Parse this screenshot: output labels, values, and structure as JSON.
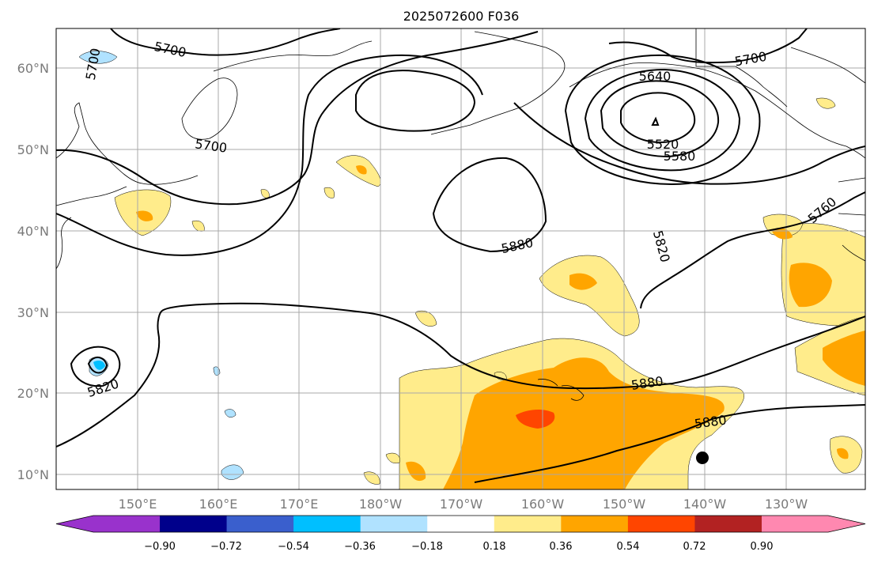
{
  "title": "2025072600 F036",
  "lat_labels": [
    "60°N",
    "50°N",
    "40°N",
    "30°N",
    "20°N",
    "10°N"
  ],
  "lon_labels": [
    "150°E",
    "160°E",
    "170°E",
    "180°W",
    "170°W",
    "160°W",
    "150°W",
    "140°W",
    "130°W"
  ],
  "contour_labels": [
    "5700",
    "5700",
    "5700",
    "5700",
    "5640",
    "5520",
    "5580",
    "5760",
    "5880",
    "5820",
    "5820",
    "5880",
    "5880"
  ],
  "colorbar": {
    "ticks": [
      "−0.90",
      "−0.72",
      "−0.54",
      "−0.36",
      "−0.18",
      "0.18",
      "0.36",
      "0.54",
      "0.72",
      "0.90"
    ],
    "colors": [
      "#9932cc",
      "#00008b",
      "#3a5fcd",
      "#00bfff",
      "#b0e2ff",
      "#ffffff",
      "#ffec8b",
      "#ffa500",
      "#ff4500",
      "#b22222",
      "#ff88b0"
    ]
  },
  "marker": "storm-center-dot",
  "colors": {
    "light_yellow": "#ffec8b",
    "orange": "#ffa500",
    "red_orange": "#ff4500",
    "light_blue": "#b0e2ff",
    "blue": "#00bfff",
    "grid": "#a8a8a8",
    "label_gray": "#7a7a7a"
  }
}
